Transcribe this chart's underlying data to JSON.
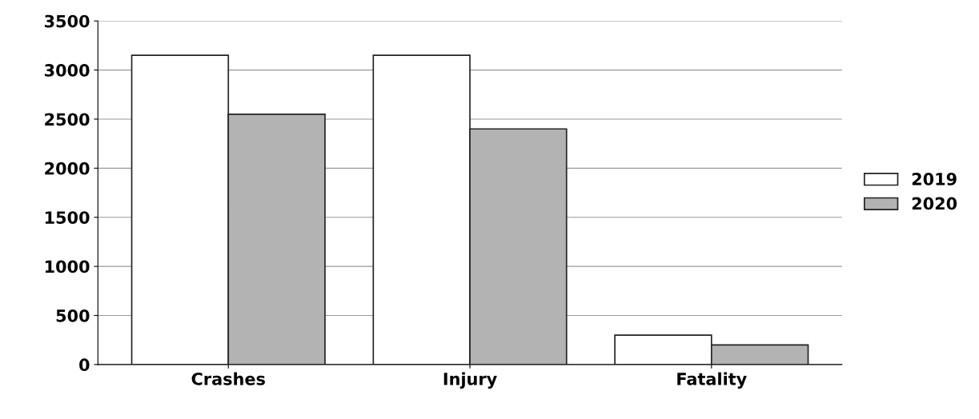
{
  "chart_data": {
    "type": "bar",
    "categories": [
      "Crashes",
      "Injury",
      "Fatality"
    ],
    "series": [
      {
        "name": "2019",
        "color": "#ffffff",
        "values": [
          3150,
          3150,
          300
        ]
      },
      {
        "name": "2020",
        "color": "#b3b3b3",
        "values": [
          2550,
          2400,
          200
        ]
      }
    ],
    "ylim": [
      0,
      3500
    ],
    "yticks": [
      0,
      500,
      1000,
      1500,
      2000,
      2500,
      3000,
      3500
    ],
    "grid": "y",
    "legend": "right"
  }
}
